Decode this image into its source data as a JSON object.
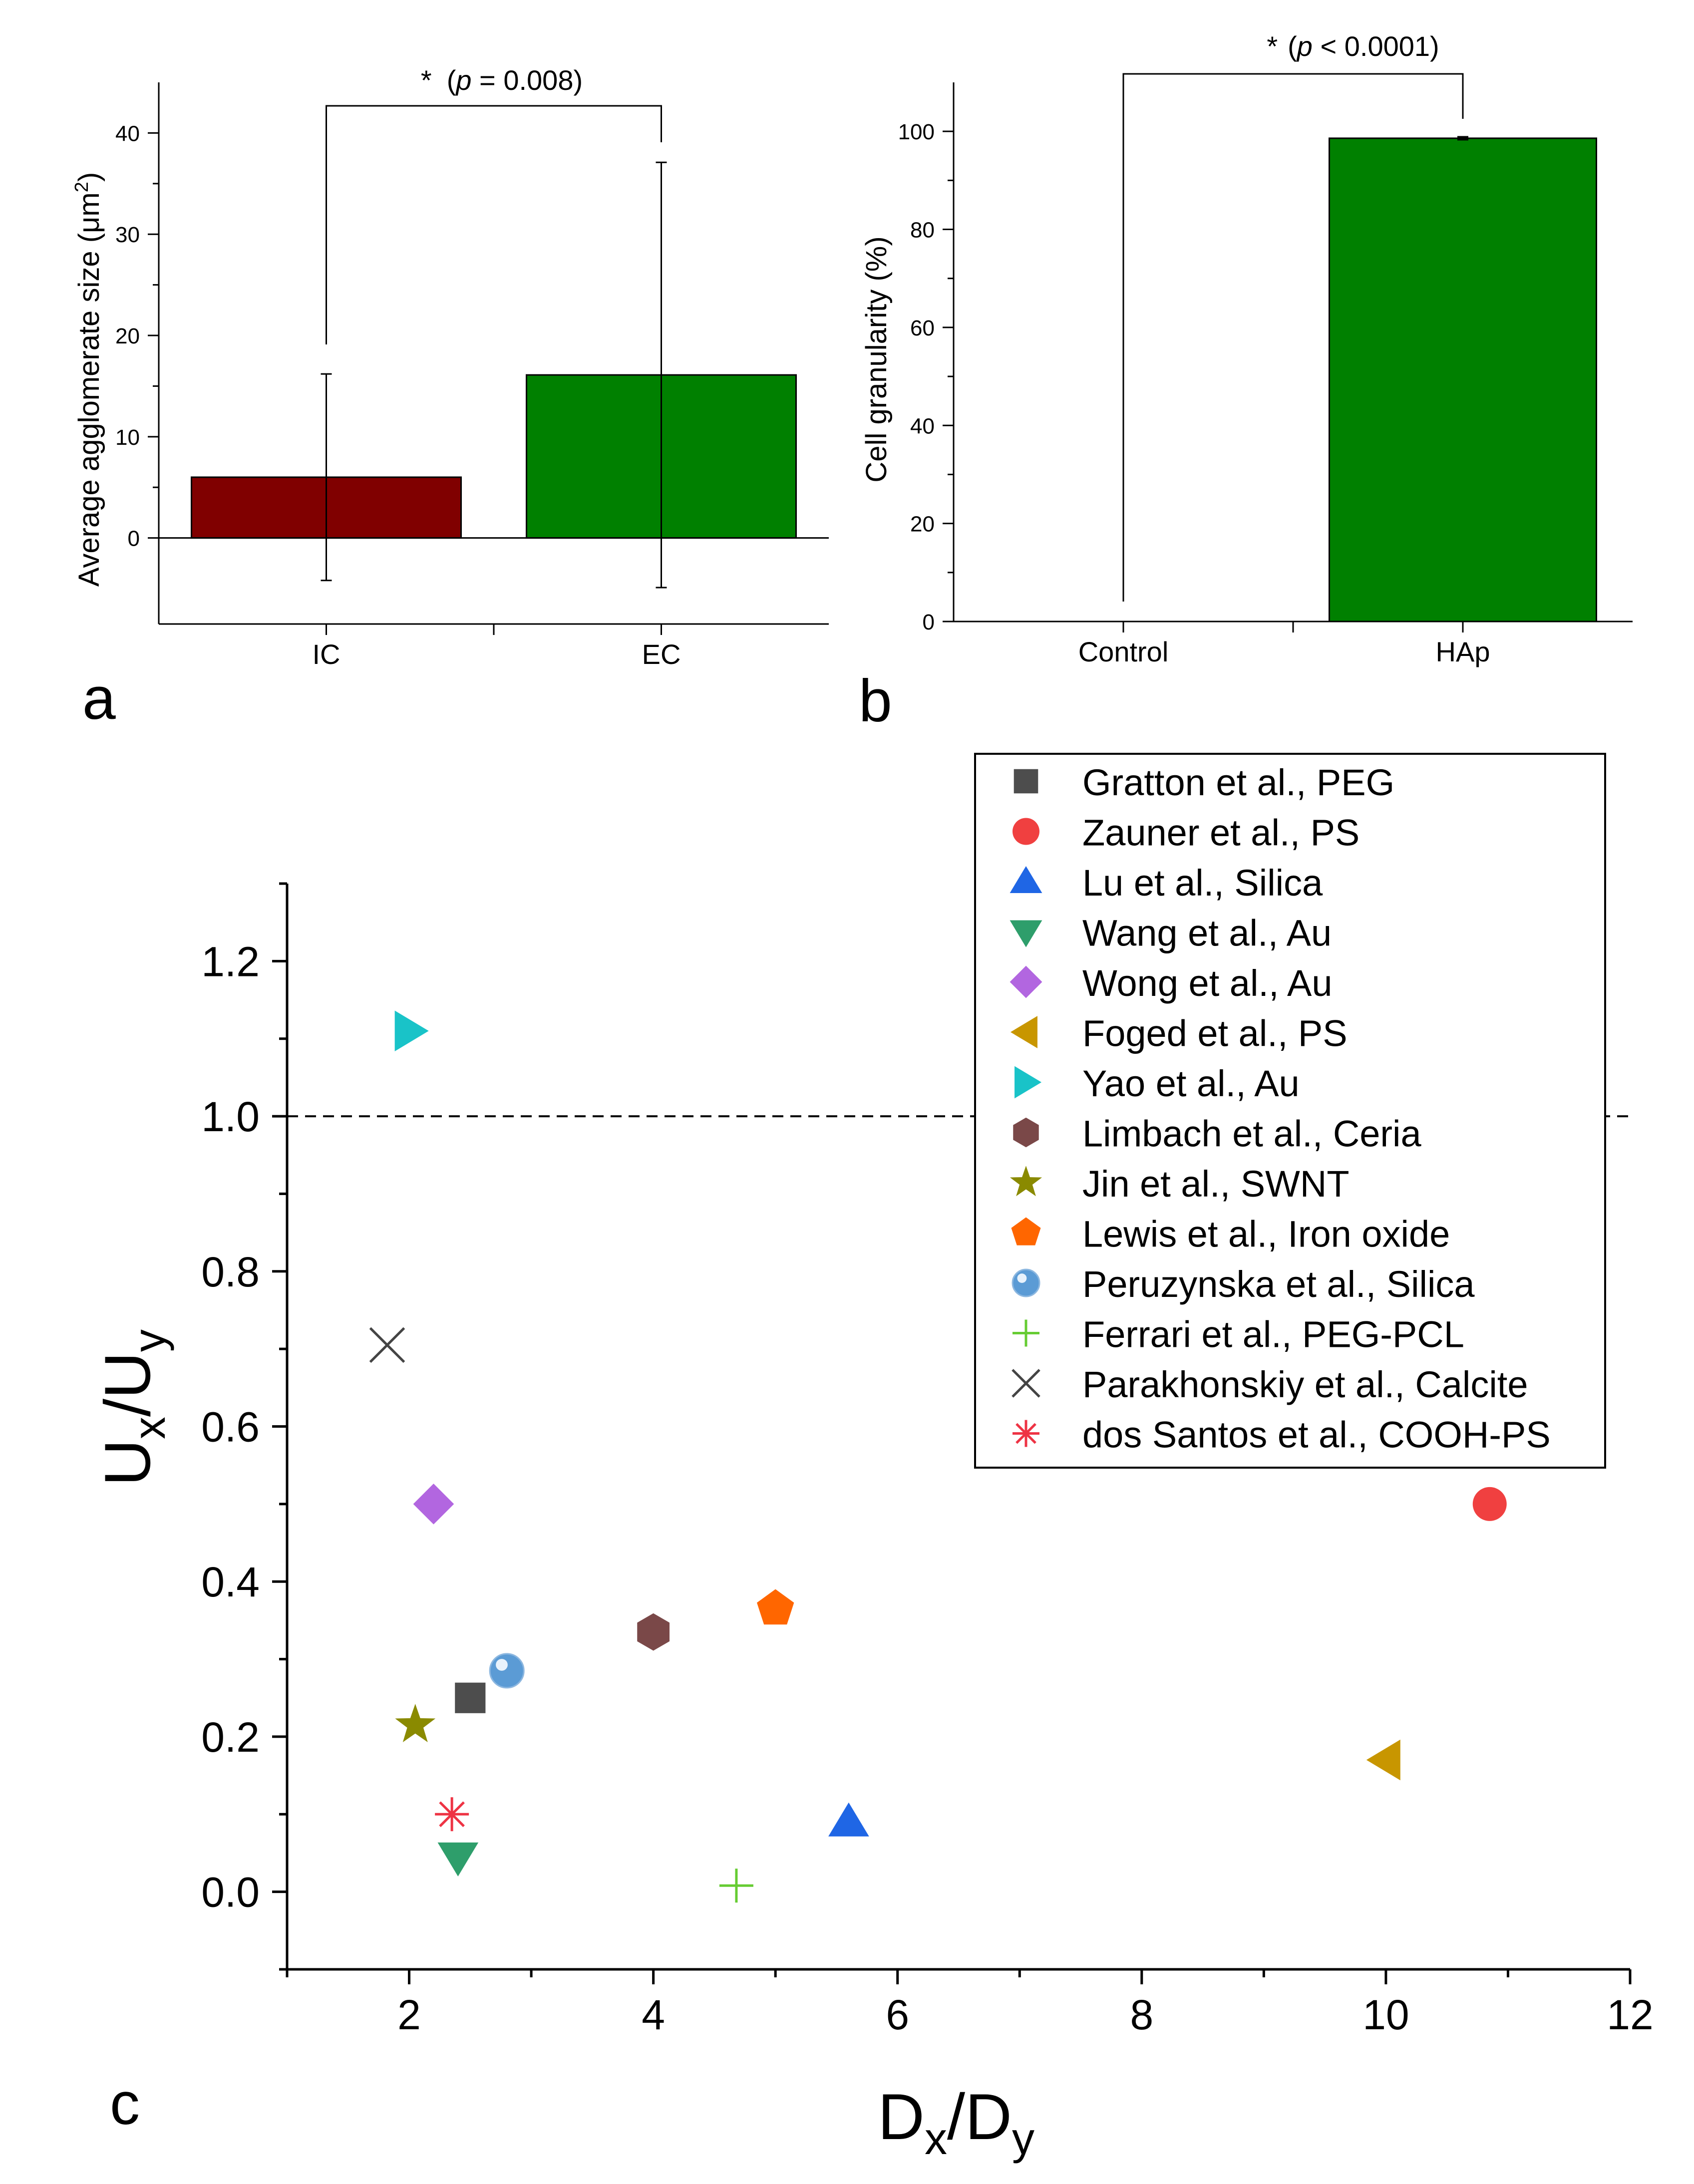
{
  "chart_data": [
    {
      "panel": "a",
      "type": "bar",
      "categories": [
        "IC",
        "EC"
      ],
      "values": [
        6,
        16.1
      ],
      "errors": [
        10.2,
        21
      ],
      "colors": [
        "#800000",
        "#008000"
      ],
      "ylabel_main": "Average agglomerate size (",
      "ylabel_unit": "μm",
      "ylabel_sup": "2",
      "ylabel_end": ")",
      "yticks": [
        0,
        10,
        20,
        30,
        40
      ],
      "ylim": [
        -8.5,
        45
      ],
      "significance": {
        "star": "*",
        "p_var": "p",
        "p_rest": " = 0.008)",
        "open": "("
      }
    },
    {
      "panel": "b",
      "type": "bar",
      "categories": [
        "Control",
        "HAp"
      ],
      "values": [
        0,
        98.6
      ],
      "errors": [
        0,
        0.3
      ],
      "colors": [
        "#008000",
        "#008000"
      ],
      "ylabel": "Cell granularity (%)",
      "yticks": [
        0,
        20,
        40,
        60,
        80,
        100
      ],
      "ylim": [
        0,
        110
      ],
      "significance": {
        "star": "*",
        "p_var": "p",
        "p_rest": " < 0.0001)",
        "open": "("
      }
    },
    {
      "panel": "c",
      "type": "scatter",
      "xlabel_main": "D",
      "xlabel_sub1": "x",
      "xlabel_slash": "/D",
      "xlabel_sub2": "y",
      "ylabel_main": "U",
      "ylabel_sub1": "x",
      "ylabel_slash": "/U",
      "ylabel_sub2": "y",
      "xlim": [
        1,
        12
      ],
      "ylim": [
        -0.1,
        1.3
      ],
      "xticks": [
        2,
        4,
        6,
        8,
        10,
        12
      ],
      "yticks": [
        0.0,
        0.2,
        0.4,
        0.6,
        0.8,
        1.0,
        1.2
      ],
      "ytick_labels": [
        "0.0",
        "0.2",
        "0.4",
        "0.6",
        "0.8",
        "1.0",
        "1.2"
      ],
      "reference_line": {
        "y": 1.0,
        "style": "dashed"
      },
      "legend_position": "top-right",
      "series": [
        {
          "name": "Gratton et al., PEG",
          "marker": "square",
          "color": "#4d4d4d",
          "x": 2.5,
          "y": 0.25
        },
        {
          "name": "Zauner et al., PS",
          "marker": "circle",
          "color": "#f04040",
          "x": 10.85,
          "y": 0.5
        },
        {
          "name": "Lu et al., Silica",
          "marker": "triangle-up",
          "color": "#1f66e5",
          "x": 5.6,
          "y": 0.09
        },
        {
          "name": "Wang et al., Au",
          "marker": "triangle-down",
          "color": "#2e9e6b",
          "x": 2.4,
          "y": 0.045
        },
        {
          "name": "Wong et al., Au",
          "marker": "diamond",
          "color": "#b266e0",
          "x": 2.2,
          "y": 0.5
        },
        {
          "name": "Foged et al., PS",
          "marker": "triangle-left",
          "color": "#c89600",
          "x": 10.0,
          "y": 0.17
        },
        {
          "name": "Yao et al., Au",
          "marker": "triangle-right",
          "color": "#19c3c8",
          "x": 2.0,
          "y": 1.11
        },
        {
          "name": "Limbach et al., Ceria",
          "marker": "hexagon",
          "color": "#7a4848",
          "x": 4.0,
          "y": 0.335
        },
        {
          "name": "Jin et al., SWNT",
          "marker": "star",
          "color": "#8a8a00",
          "x": 2.05,
          "y": 0.215
        },
        {
          "name": "Lewis et al., Iron oxide",
          "marker": "pentagon",
          "color": "#ff6600",
          "x": 5.0,
          "y": 0.365
        },
        {
          "name": "Peruzynska et al., Silica",
          "marker": "sphere",
          "color": "#5b9bd5",
          "x": 2.8,
          "y": 0.285
        },
        {
          "name": "Ferrari et al., PEG-PCL",
          "marker": "plus",
          "color": "#66cc33",
          "x": 4.68,
          "y": 0.008
        },
        {
          "name": "Parakhonskiy et al., Calcite",
          "marker": "cross",
          "color": "#444444",
          "x": 1.82,
          "y": 0.705
        },
        {
          "name": "dos Santos et al., COOH-PS",
          "marker": "asterisk",
          "color": "#ee3344",
          "x": 2.35,
          "y": 0.1
        }
      ]
    }
  ],
  "panel_labels": [
    "a",
    "b",
    "c"
  ]
}
